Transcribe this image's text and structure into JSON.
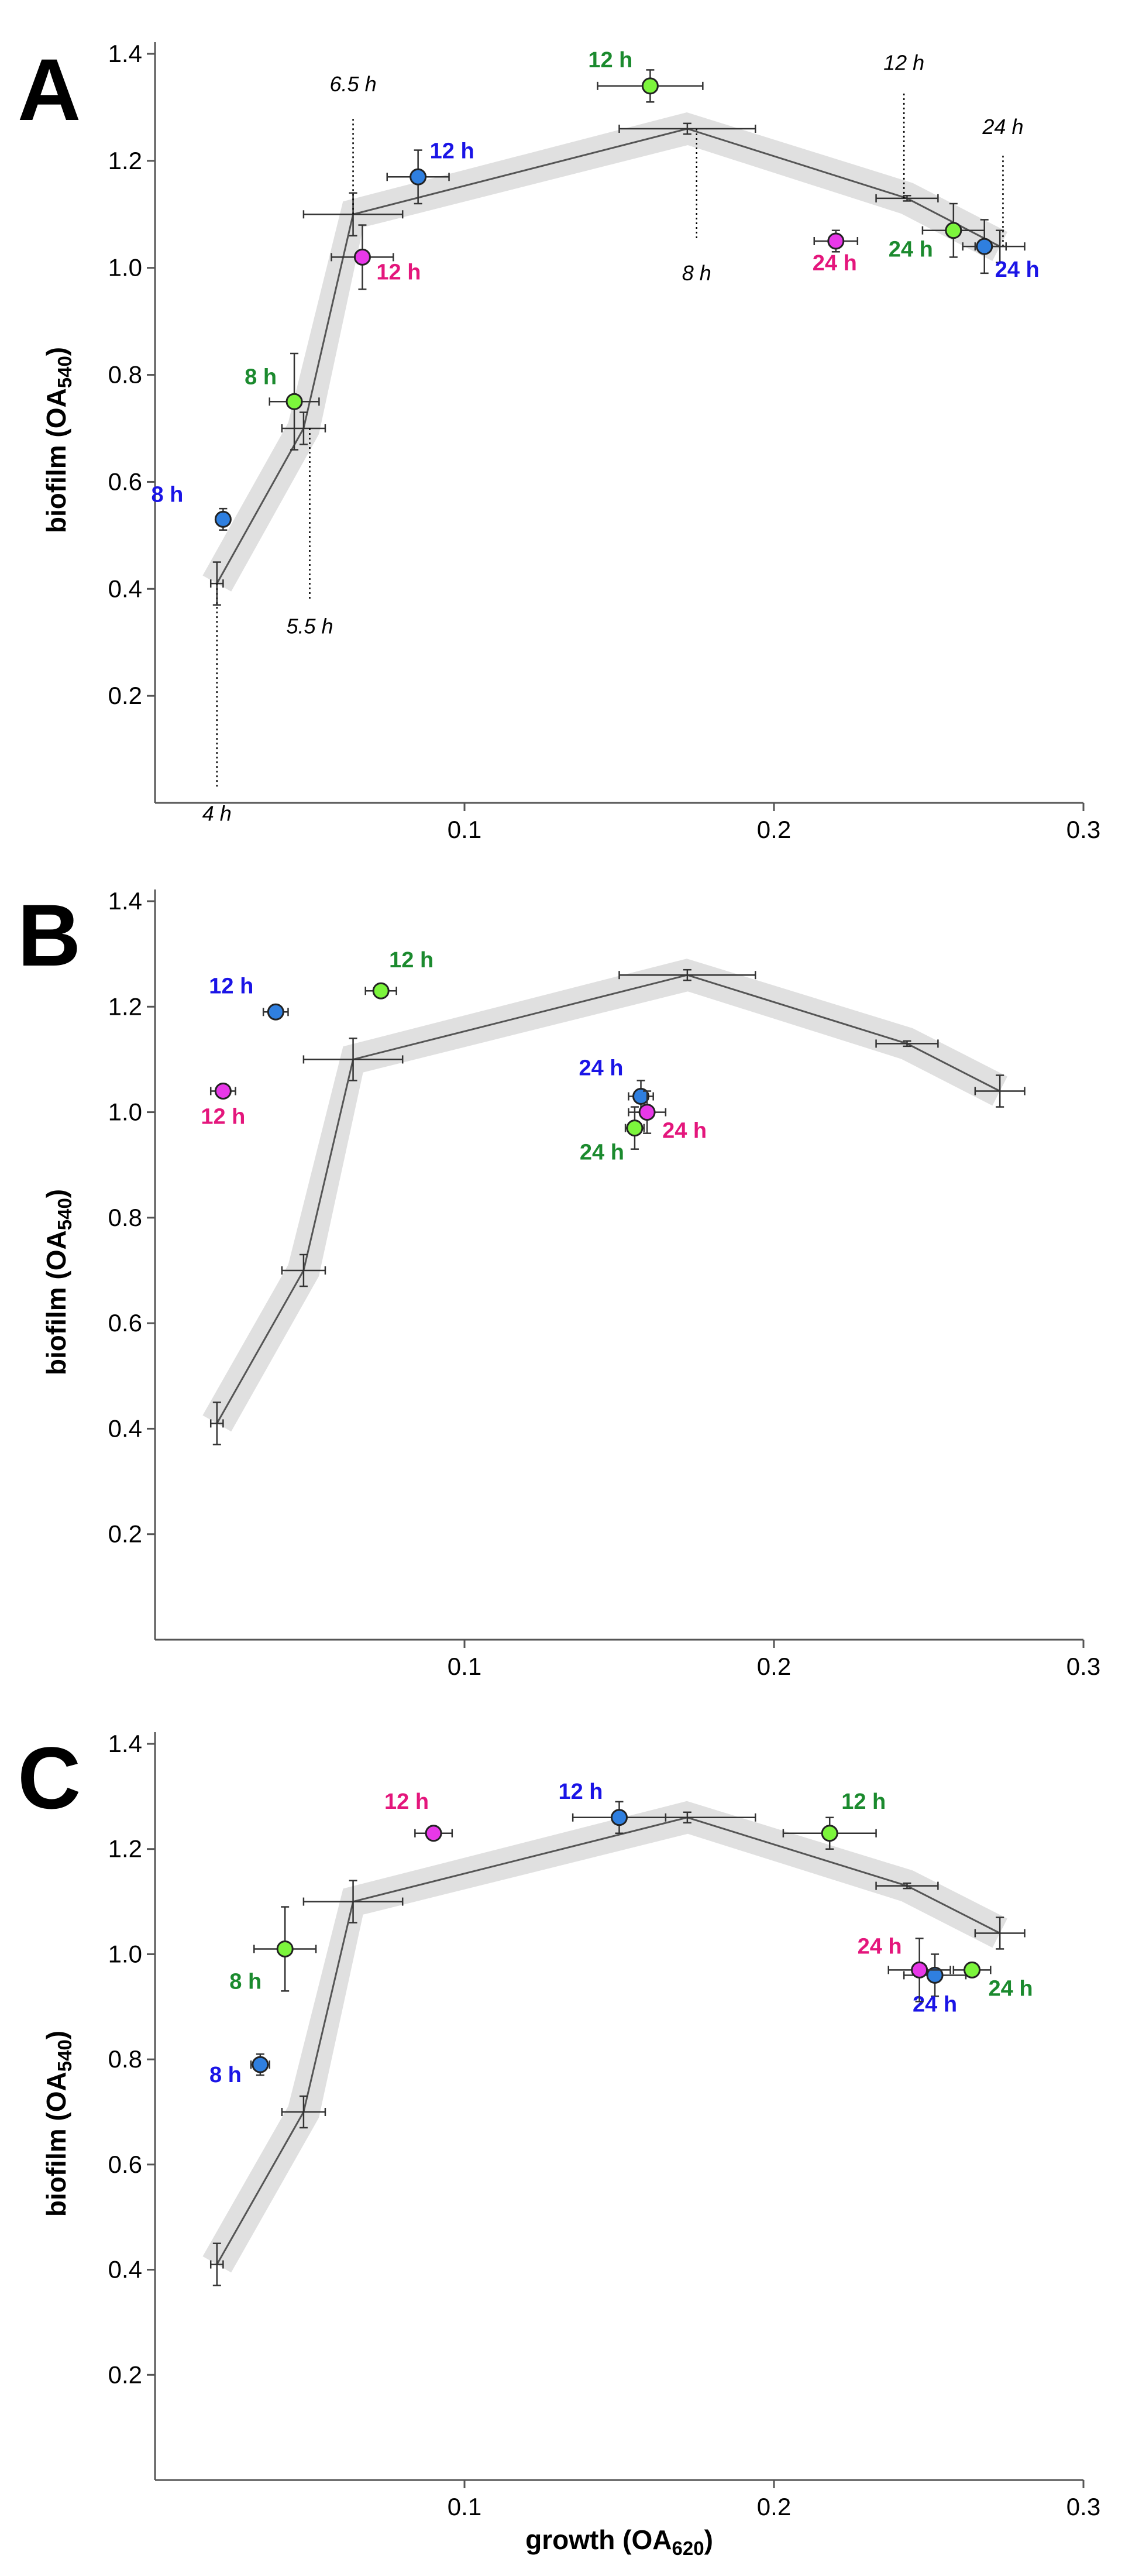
{
  "colors": {
    "blue_marker": "#2f7fdf",
    "blue_label": "#1a14e6",
    "green_marker": "#7cf53c",
    "green_label": "#1b8a2e",
    "magenta_marker": "#e838e8",
    "magenta_label": "#e4167c",
    "band": "#e0e0e0",
    "line": "#555555"
  },
  "axis_titles": {
    "ylabel_main": "biofilm (OA",
    "ylabel_sub": "540",
    "ylabel_close": ")",
    "xlabel_main": "growth (OA",
    "xlabel_sub": "620",
    "xlabel_close": ")"
  },
  "chart_data": [
    {
      "panel": "A",
      "type": "scatter",
      "xlabel": "",
      "ylabel": "biofilm (OA540)",
      "xlim": [
        0,
        0.3
      ],
      "ylim": [
        0,
        1.4
      ],
      "xticks": [
        "0.1",
        "0.2",
        "0.3"
      ],
      "yticks": [
        "0.2",
        "0.4",
        "0.6",
        "0.8",
        "1.0",
        "1.2",
        "1.4"
      ],
      "reference_curve": [
        {
          "x": 0.02,
          "y": 0.41,
          "xerr": 0.002,
          "yerr": 0.04
        },
        {
          "x": 0.048,
          "y": 0.7,
          "xerr": 0.007,
          "yerr": 0.03
        },
        {
          "x": 0.064,
          "y": 1.1,
          "xerr": 0.016,
          "yerr": 0.04
        },
        {
          "x": 0.172,
          "y": 1.26,
          "xerr": 0.022,
          "yerr": 0.01
        },
        {
          "x": 0.243,
          "y": 1.13,
          "xerr": 0.01,
          "yerr": 0.005
        },
        {
          "x": 0.273,
          "y": 1.04,
          "xerr": 0.008,
          "yerr": 0.03
        }
      ],
      "series": [
        {
          "name": "blue",
          "points": [
            {
              "label": "8 h",
              "x": 0.022,
              "y": 0.53,
              "xerr": 0.0,
              "yerr": 0.02
            },
            {
              "label": "12 h",
              "x": 0.085,
              "y": 1.17,
              "xerr": 0.01,
              "yerr": 0.05
            },
            {
              "label": "24 h",
              "x": 0.268,
              "y": 1.04,
              "xerr": 0.007,
              "yerr": 0.05
            }
          ]
        },
        {
          "name": "green",
          "points": [
            {
              "label": "8 h",
              "x": 0.045,
              "y": 0.75,
              "xerr": 0.008,
              "yerr": 0.09
            },
            {
              "label": "12 h",
              "x": 0.16,
              "y": 1.34,
              "xerr": 0.017,
              "yerr": 0.03
            },
            {
              "label": "24 h",
              "x": 0.258,
              "y": 1.07,
              "xerr": 0.01,
              "yerr": 0.05
            }
          ]
        },
        {
          "name": "magenta",
          "points": [
            {
              "label": "12 h",
              "x": 0.067,
              "y": 1.02,
              "xerr": 0.01,
              "yerr": 0.06
            },
            {
              "label": "24 h",
              "x": 0.22,
              "y": 1.05,
              "xerr": 0.007,
              "yerr": 0.02
            }
          ]
        }
      ],
      "time_annotations": [
        {
          "label": "4 h",
          "x": 0.02,
          "y_from": 0.41,
          "y_to": 0.03,
          "text_y": -0.02,
          "pos": "below"
        },
        {
          "label": "5.5 h",
          "x": 0.05,
          "y_from": 0.7,
          "y_to": 0.38,
          "text_y": 0.33,
          "pos": "below"
        },
        {
          "label": "6.5 h",
          "x": 0.064,
          "y_from": 1.1,
          "y_to": 1.28,
          "text_y": 1.33,
          "pos": "above"
        },
        {
          "label": "8 h",
          "x": 0.175,
          "y_from": 1.26,
          "y_to": 1.05,
          "text_y": 0.99,
          "pos": "below"
        },
        {
          "label": "12 h",
          "x": 0.242,
          "y_from": 1.13,
          "y_to": 1.33,
          "text_y": 1.37,
          "pos": "above"
        },
        {
          "label": "24 h",
          "x": 0.274,
          "y_from": 1.04,
          "y_to": 1.21,
          "text_y": 1.25,
          "pos": "above"
        }
      ]
    },
    {
      "panel": "B",
      "type": "scatter",
      "xlabel": "",
      "ylabel": "biofilm (OA540)",
      "xlim": [
        0,
        0.3
      ],
      "ylim": [
        0,
        1.4
      ],
      "xticks": [
        "0.1",
        "0.2",
        "0.3"
      ],
      "yticks": [
        "0.2",
        "0.4",
        "0.6",
        "0.8",
        "1.0",
        "1.2",
        "1.4"
      ],
      "reference_curve": [
        {
          "x": 0.02,
          "y": 0.41,
          "xerr": 0.002,
          "yerr": 0.04
        },
        {
          "x": 0.048,
          "y": 0.7,
          "xerr": 0.007,
          "yerr": 0.03
        },
        {
          "x": 0.064,
          "y": 1.1,
          "xerr": 0.016,
          "yerr": 0.04
        },
        {
          "x": 0.172,
          "y": 1.26,
          "xerr": 0.022,
          "yerr": 0.01
        },
        {
          "x": 0.243,
          "y": 1.13,
          "xerr": 0.01,
          "yerr": 0.005
        },
        {
          "x": 0.273,
          "y": 1.04,
          "xerr": 0.008,
          "yerr": 0.03
        }
      ],
      "series": [
        {
          "name": "blue",
          "points": [
            {
              "label": "12 h",
              "x": 0.039,
              "y": 1.19,
              "xerr": 0.004,
              "yerr": 0.0
            },
            {
              "label": "24 h",
              "x": 0.157,
              "y": 1.03,
              "xerr": 0.004,
              "yerr": 0.03
            }
          ]
        },
        {
          "name": "green",
          "points": [
            {
              "label": "12 h",
              "x": 0.073,
              "y": 1.23,
              "xerr": 0.005,
              "yerr": 0.01
            },
            {
              "label": "24 h",
              "x": 0.155,
              "y": 0.97,
              "xerr": 0.003,
              "yerr": 0.04
            }
          ]
        },
        {
          "name": "magenta",
          "points": [
            {
              "label": "12 h",
              "x": 0.022,
              "y": 1.04,
              "xerr": 0.004,
              "yerr": 0.0
            },
            {
              "label": "24 h",
              "x": 0.159,
              "y": 1.0,
              "xerr": 0.006,
              "yerr": 0.04
            }
          ]
        }
      ],
      "time_annotations": []
    },
    {
      "panel": "C",
      "type": "scatter",
      "xlabel": "growth (OA620)",
      "ylabel": "biofilm (OA540)",
      "xlim": [
        0,
        0.3
      ],
      "ylim": [
        0,
        1.4
      ],
      "xticks": [
        "0.1",
        "0.2",
        "0.3"
      ],
      "yticks": [
        "0.2",
        "0.4",
        "0.6",
        "0.8",
        "1.0",
        "1.2",
        "1.4"
      ],
      "reference_curve": [
        {
          "x": 0.02,
          "y": 0.41,
          "xerr": 0.002,
          "yerr": 0.04
        },
        {
          "x": 0.048,
          "y": 0.7,
          "xerr": 0.007,
          "yerr": 0.03
        },
        {
          "x": 0.064,
          "y": 1.1,
          "xerr": 0.016,
          "yerr": 0.04
        },
        {
          "x": 0.172,
          "y": 1.26,
          "xerr": 0.022,
          "yerr": 0.01
        },
        {
          "x": 0.243,
          "y": 1.13,
          "xerr": 0.01,
          "yerr": 0.005
        },
        {
          "x": 0.273,
          "y": 1.04,
          "xerr": 0.008,
          "yerr": 0.03
        }
      ],
      "series": [
        {
          "name": "blue",
          "points": [
            {
              "label": "8 h",
              "x": 0.034,
              "y": 0.79,
              "xerr": 0.003,
              "yerr": 0.02
            },
            {
              "label": "12 h",
              "x": 0.15,
              "y": 1.26,
              "xerr": 0.015,
              "yerr": 0.03
            },
            {
              "label": "24 h",
              "x": 0.252,
              "y": 0.96,
              "xerr": 0.01,
              "yerr": 0.04
            }
          ]
        },
        {
          "name": "green",
          "points": [
            {
              "label": "8 h",
              "x": 0.042,
              "y": 1.01,
              "xerr": 0.01,
              "yerr": 0.08
            },
            {
              "label": "12 h",
              "x": 0.218,
              "y": 1.23,
              "xerr": 0.015,
              "yerr": 0.03
            },
            {
              "label": "24 h",
              "x": 0.264,
              "y": 0.97,
              "xerr": 0.006,
              "yerr": 0.0
            }
          ]
        },
        {
          "name": "magenta",
          "points": [
            {
              "label": "12 h",
              "x": 0.09,
              "y": 1.23,
              "xerr": 0.006,
              "yerr": 0.0
            },
            {
              "label": "24 h",
              "x": 0.247,
              "y": 0.97,
              "xerr": 0.01,
              "yerr": 0.06
            }
          ]
        }
      ],
      "time_annotations": []
    }
  ]
}
